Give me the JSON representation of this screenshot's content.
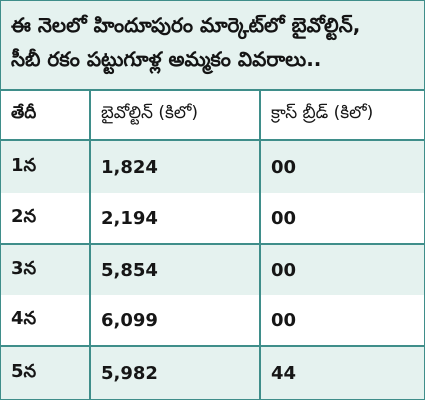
{
  "title": {
    "line1": "ఈ నెలలో హిందూపురం మార్కెట్‌లో బైవోల్టిన్,",
    "line2": "సీబీ రకం పట్టుగూళ్ల అమ్మకం వివరాలు.."
  },
  "table": {
    "headers": [
      "తేదీ",
      "బైవోల్టిన్ (కిలో)",
      "క్రాస్ బ్రీడ్ (కిలో)"
    ],
    "rows": [
      {
        "date": "1న",
        "bivoltine": "1,824",
        "crossbreed": "00"
      },
      {
        "date": "2న",
        "bivoltine": "2,194",
        "crossbreed": "00"
      },
      {
        "date": "3న",
        "bivoltine": "5,854",
        "crossbreed": "00"
      },
      {
        "date": "4న",
        "bivoltine": "6,099",
        "crossbreed": "00"
      },
      {
        "date": "5న",
        "bivoltine": "5,982",
        "crossbreed": "44"
      }
    ]
  },
  "colors": {
    "border": "#3f8e8a",
    "band": "#e5f2ef",
    "text": "#161616"
  }
}
